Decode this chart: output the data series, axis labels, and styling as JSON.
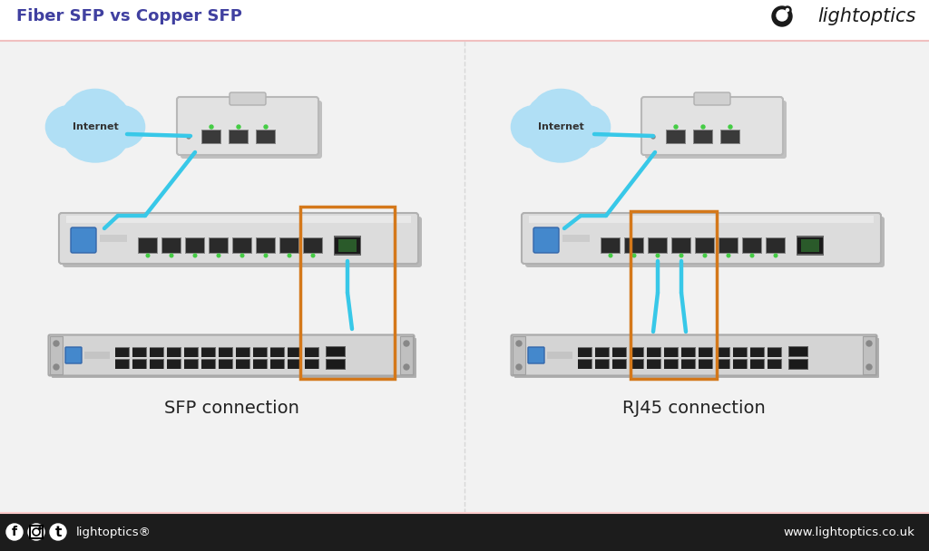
{
  "title": "Fiber SFP vs Copper SFP",
  "title_color": "#4040a0",
  "title_fontsize": 13,
  "bg_color": "#ffffff",
  "footer_bg": "#1c1c1c",
  "footer_color": "#ffffff",
  "logo_color": "#1a1a1a",
  "header_line_color": "#f0c0c0",
  "left_label": "SFP connection",
  "right_label": "RJ45 connection",
  "internet_label": "Internet",
  "cable_color": "#38c8e8",
  "box_color": "#d4781a",
  "content_bg": "#f2f2f2",
  "device_color": "#d8d8d8",
  "device_shadow": "#b8b8b8",
  "port_color": "#404040",
  "green_led": "#44cc44",
  "blue_led": "#3377cc"
}
